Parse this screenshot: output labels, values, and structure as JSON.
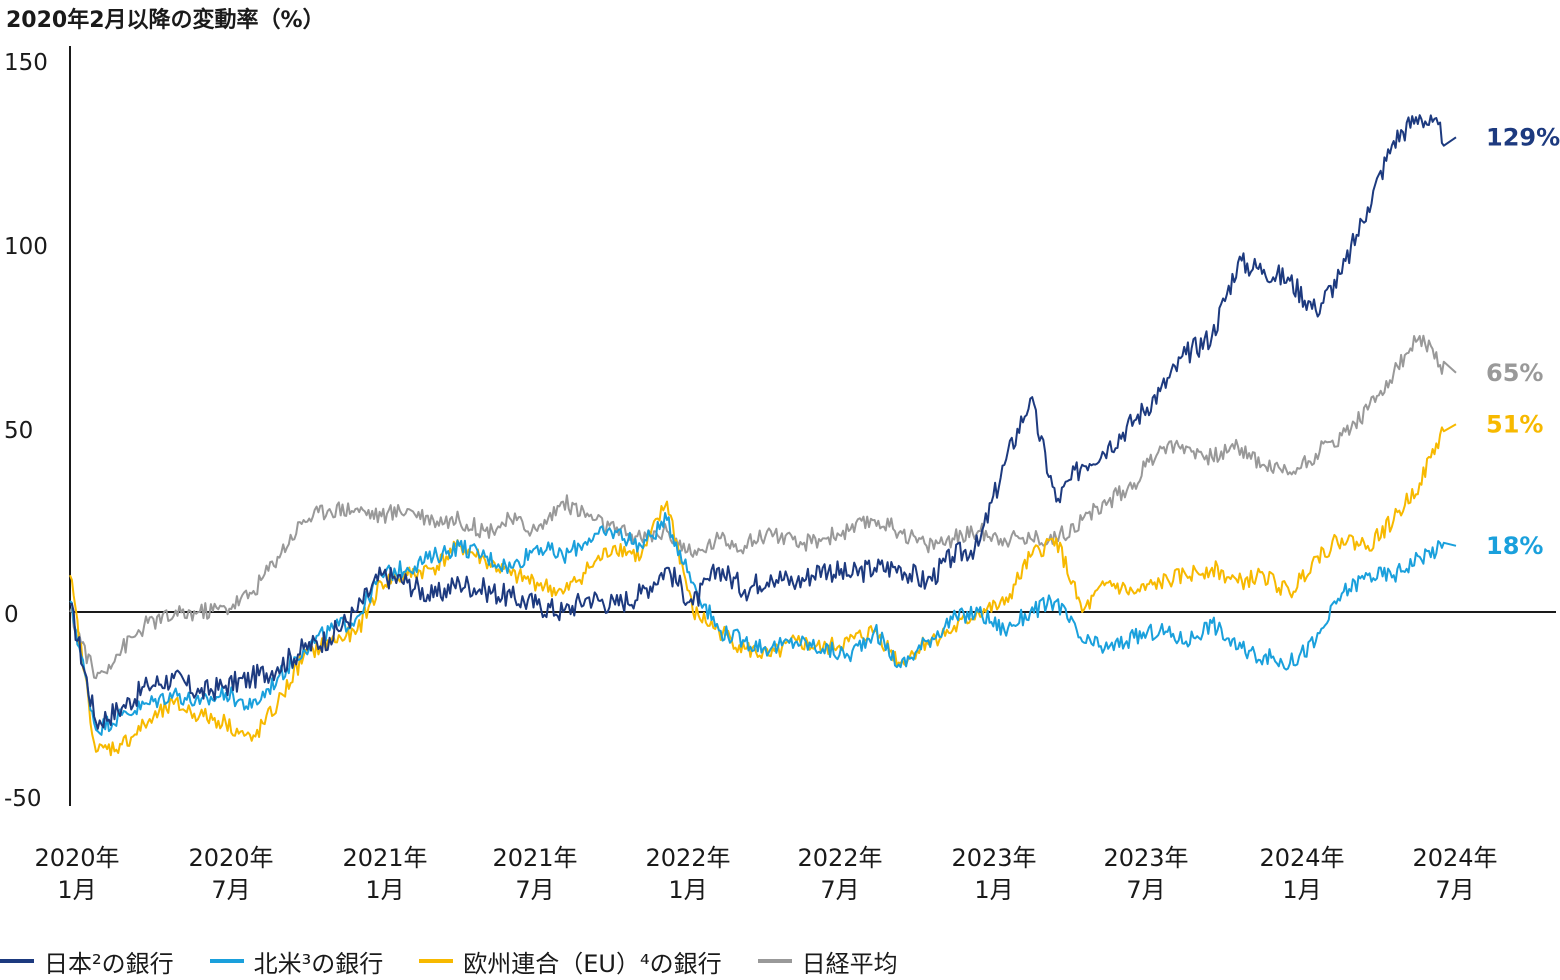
{
  "chart_data": {
    "type": "line",
    "title": "2020年2月以降の変動率（%）",
    "ylim": [
      -50,
      150
    ],
    "yticks": [
      "150",
      "100",
      "50",
      "0",
      "-50"
    ],
    "x_ticks": [
      {
        "year": "2020年",
        "month": "1月"
      },
      {
        "year": "2020年",
        "month": "7月"
      },
      {
        "year": "2021年",
        "month": "1月"
      },
      {
        "year": "2021年",
        "month": "7月"
      },
      {
        "year": "2022年",
        "month": "1月"
      },
      {
        "year": "2022年",
        "month": "7月"
      },
      {
        "year": "2023年",
        "month": "1月"
      },
      {
        "year": "2023年",
        "month": "7月"
      },
      {
        "year": "2024年",
        "month": "1月"
      },
      {
        "year": "2024年",
        "month": "7月"
      }
    ],
    "x": [
      "2020-02",
      "2020-03",
      "2020-04",
      "2020-05",
      "2020-06",
      "2020-07",
      "2020-08",
      "2020-09",
      "2020-10",
      "2020-11",
      "2020-12",
      "2021-01",
      "2021-02",
      "2021-03",
      "2021-04",
      "2021-05",
      "2021-06",
      "2021-07",
      "2021-08",
      "2021-09",
      "2021-10",
      "2021-11",
      "2021-12",
      "2022-01",
      "2022-02",
      "2022-03",
      "2022-04",
      "2022-05",
      "2022-06",
      "2022-07",
      "2022-08",
      "2022-09",
      "2022-10",
      "2022-11",
      "2022-12",
      "2023-01",
      "2023-02",
      "2023-03",
      "2023-04",
      "2023-05",
      "2023-06",
      "2023-07",
      "2023-08",
      "2023-09",
      "2023-10",
      "2023-11",
      "2023-12",
      "2024-01",
      "2024-02",
      "2024-03",
      "2024-04",
      "2024-05",
      "2024-06",
      "2024-07"
    ],
    "series": [
      {
        "name": "日本²の銀行",
        "color": "#1d3a7f",
        "end_label": "129%",
        "values": [
          2,
          -30,
          -26,
          -20,
          -18,
          -22,
          -20,
          -18,
          -15,
          -10,
          -7,
          0,
          10,
          8,
          4,
          8,
          6,
          4,
          2,
          0,
          4,
          2,
          5,
          12,
          2,
          12,
          6,
          10,
          8,
          12,
          10,
          12,
          12,
          8,
          15,
          18,
          40,
          58,
          30,
          40,
          45,
          52,
          60,
          70,
          75,
          95,
          93,
          90,
          82,
          92,
          110,
          128,
          135,
          129
        ]
      },
      {
        "name": "北米³の銀行",
        "color": "#1aa0dc",
        "end_label": "18%",
        "values": [
          3,
          -32,
          -28,
          -25,
          -22,
          -25,
          -22,
          -26,
          -18,
          -10,
          -5,
          -2,
          10,
          12,
          15,
          18,
          15,
          12,
          18,
          15,
          20,
          22,
          18,
          25,
          8,
          -5,
          -8,
          -10,
          -8,
          -10,
          -12,
          -5,
          -15,
          -8,
          -2,
          0,
          -5,
          0,
          3,
          -8,
          -10,
          -7,
          -5,
          -8,
          -3,
          -10,
          -12,
          -14,
          -8,
          5,
          10,
          10,
          15,
          18
        ]
      },
      {
        "name": "欧州連合（EU）⁴の銀行",
        "color": "#f7b900",
        "end_label": "51%",
        "values": [
          10,
          -38,
          -36,
          -30,
          -25,
          -28,
          -30,
          -35,
          -25,
          -12,
          -8,
          -6,
          8,
          10,
          12,
          18,
          14,
          10,
          8,
          5,
          12,
          18,
          15,
          30,
          0,
          -5,
          -10,
          -12,
          -8,
          -10,
          -8,
          -5,
          -14,
          -8,
          -5,
          0,
          2,
          15,
          20,
          0,
          8,
          5,
          8,
          10,
          12,
          8,
          10,
          5,
          15,
          20,
          18,
          25,
          35,
          51
        ]
      },
      {
        "name": "日経平均",
        "color": "#999999",
        "end_label": "65%",
        "values": [
          0,
          -18,
          -10,
          -3,
          -1,
          0,
          1,
          5,
          15,
          25,
          28,
          28,
          26,
          28,
          25,
          25,
          22,
          25,
          22,
          30,
          26,
          22,
          20,
          22,
          15,
          20,
          18,
          22,
          18,
          20,
          22,
          25,
          22,
          18,
          20,
          22,
          20,
          20,
          20,
          25,
          30,
          35,
          45,
          45,
          42,
          45,
          40,
          38,
          43,
          48,
          55,
          65,
          75,
          65
        ]
      }
    ]
  },
  "legend": [
    {
      "label": "日本²の銀行",
      "color": "#1d3a7f"
    },
    {
      "label": "北米³の銀行",
      "color": "#1aa0dc"
    },
    {
      "label": "欧州連合（EU）⁴の銀行",
      "color": "#f7b900"
    },
    {
      "label": "日経平均",
      "color": "#999999"
    }
  ]
}
